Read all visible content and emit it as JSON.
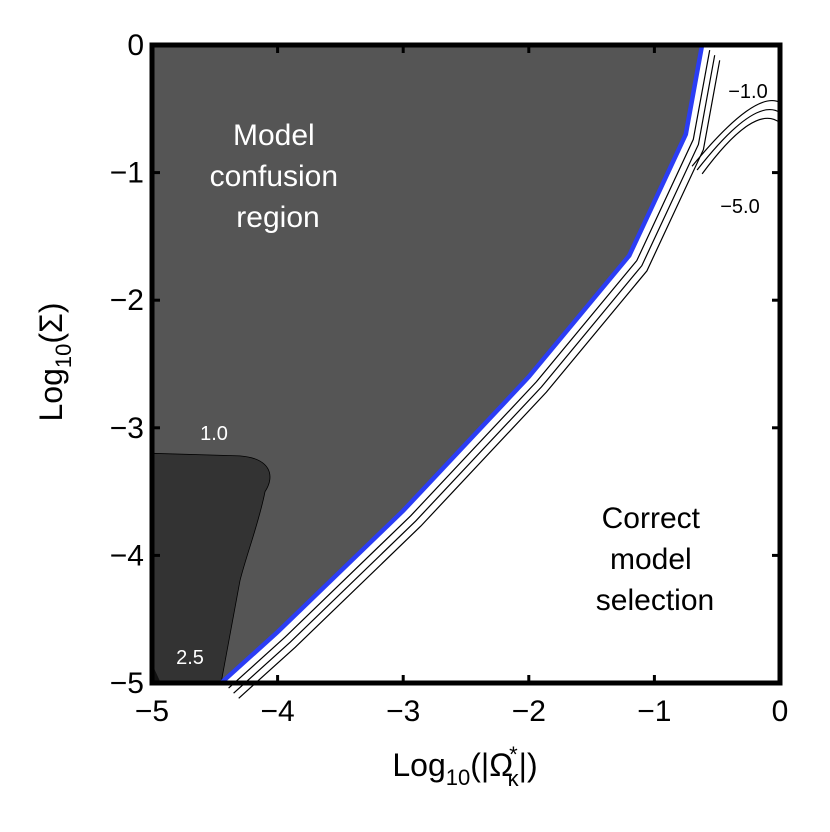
{
  "chart_data": {
    "type": "contour",
    "xlim": [
      -5,
      0
    ],
    "ylim": [
      -5,
      0
    ],
    "x_ticks": [
      "−5",
      "−4",
      "−3",
      "−2",
      "−1",
      "0"
    ],
    "y_ticks": [
      "0",
      "−1",
      "−2",
      "−3",
      "−4",
      "−5"
    ],
    "xlabel": {
      "prefix": "Log",
      "sub": "10",
      "body": "(|Ω",
      "sup": "*",
      "sub2": "κ",
      "suffix": "|)"
    },
    "ylabel": {
      "prefix": "Log",
      "sub": "10",
      "body": "(Σ)"
    },
    "regions": {
      "confusion": {
        "lines": [
          "Model",
          "confusion",
          "region"
        ],
        "boundary": [
          [
            -4.45,
            -5
          ],
          [
            -4.0,
            -4.6
          ],
          [
            -3.0,
            -3.65
          ],
          [
            -2.0,
            -2.6
          ],
          [
            -1.2,
            -1.65
          ],
          [
            -0.75,
            -0.7
          ],
          [
            -0.62,
            0
          ]
        ]
      },
      "strong": {
        "boundary": [
          [
            -5,
            -3.2
          ],
          [
            -4.3,
            -3.22
          ],
          [
            -4.1,
            -3.5
          ],
          [
            -4.3,
            -4.2
          ],
          [
            -4.45,
            -5
          ]
        ]
      },
      "correct": {
        "lines": [
          "Correct",
          "model",
          "selection"
        ]
      }
    },
    "contours": [
      {
        "label": "1.0",
        "level": 1.0
      },
      {
        "label": "2.5",
        "level": 2.5
      },
      {
        "label": "−1.0",
        "level": -1.0
      },
      {
        "label": "−5.0",
        "level": -5.0
      }
    ],
    "colors": {
      "confusion": "#555555",
      "strong": "#333333",
      "corner": "#111111",
      "boundary": "#2b3df5",
      "contour": "#000000",
      "background": "#ffffff"
    }
  }
}
